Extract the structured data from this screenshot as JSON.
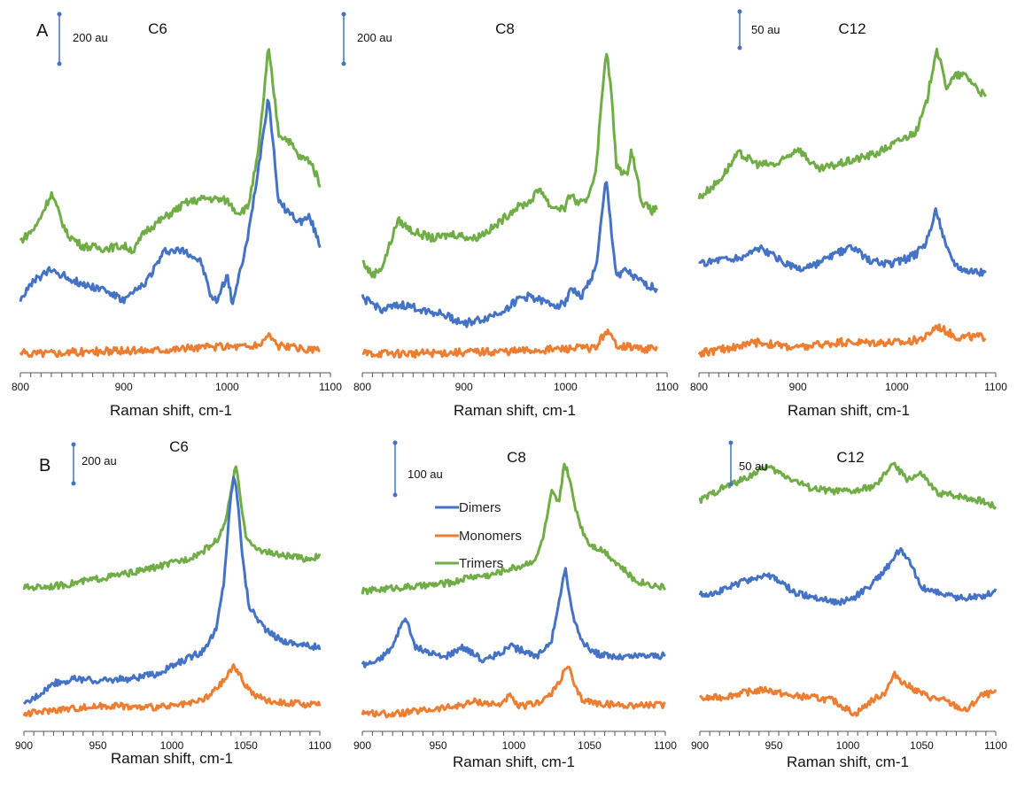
{
  "figure": {
    "row_labels": [
      "A",
      "B"
    ],
    "colors": {
      "Dimers": "#4472C4",
      "Monomers": "#ED7D31",
      "Trimers": "#70AD47",
      "scale_bar": "#4472C4",
      "axis": "#555555"
    },
    "legend": {
      "entries": [
        {
          "name": "Dimers",
          "color": "#4472C4"
        },
        {
          "name": "Monomers",
          "color": "#ED7D31"
        },
        {
          "name": "Trimers",
          "color": "#70AD47"
        }
      ]
    }
  },
  "chart_data": [
    {
      "type": "line",
      "panel": "A-C6",
      "title": "C6",
      "xlabel": "Raman shift, cm-1",
      "xlim": [
        800,
        1100
      ],
      "xticks": [
        800,
        900,
        1000,
        1100
      ],
      "yaxis_visible": false,
      "scale_bar": {
        "label": "200 au",
        "value": 200
      },
      "series": [
        {
          "name": "Trimers",
          "x": [
            800,
            815,
            830,
            845,
            860,
            880,
            900,
            910,
            920,
            940,
            960,
            980,
            1000,
            1010,
            1020,
            1030,
            1040,
            1050,
            1060,
            1070,
            1080,
            1090
          ],
          "y": [
            560,
            620,
            760,
            590,
            540,
            530,
            540,
            520,
            600,
            660,
            720,
            740,
            730,
            680,
            700,
            920,
            1370,
            1010,
            980,
            910,
            900,
            800
          ]
        },
        {
          "name": "Dimers",
          "x": [
            800,
            815,
            830,
            845,
            860,
            880,
            900,
            920,
            940,
            960,
            975,
            985,
            990,
            1000,
            1005,
            1010,
            1020,
            1030,
            1040,
            1050,
            1060,
            1070,
            1080,
            1090
          ],
          "y": [
            320,
            400,
            440,
            410,
            380,
            360,
            310,
            380,
            520,
            520,
            470,
            320,
            310,
            420,
            300,
            380,
            570,
            860,
            1170,
            720,
            680,
            640,
            660,
            540
          ]
        },
        {
          "name": "Monomers",
          "x": [
            800,
            850,
            900,
            950,
            1000,
            1030,
            1040,
            1050,
            1070,
            1090
          ],
          "y": [
            90,
            95,
            100,
            110,
            120,
            120,
            170,
            120,
            110,
            100
          ]
        }
      ]
    },
    {
      "type": "line",
      "panel": "A-C8",
      "title": "C8",
      "xlabel": "Raman shift, cm-1",
      "xlim": [
        800,
        1100
      ],
      "xticks": [
        800,
        900,
        1000,
        1100
      ],
      "yaxis_visible": false,
      "scale_bar": {
        "label": "200 au",
        "value": 200
      },
      "series": [
        {
          "name": "Trimers",
          "x": [
            800,
            810,
            820,
            835,
            850,
            870,
            890,
            910,
            930,
            950,
            965,
            975,
            985,
            1000,
            1005,
            1010,
            1020,
            1030,
            1040,
            1045,
            1050,
            1060,
            1065,
            1075,
            1085,
            1090
          ],
          "y": [
            460,
            400,
            440,
            640,
            590,
            560,
            580,
            560,
            610,
            690,
            720,
            780,
            700,
            690,
            760,
            720,
            710,
            860,
            1390,
            1200,
            880,
            830,
            950,
            720,
            680,
            690
          ]
        },
        {
          "name": "Dimers",
          "x": [
            800,
            820,
            840,
            860,
            880,
            900,
            920,
            940,
            955,
            965,
            980,
            995,
            1000,
            1005,
            1015,
            1030,
            1040,
            1045,
            1050,
            1060,
            1070,
            1080,
            1090
          ],
          "y": [
            300,
            250,
            270,
            250,
            230,
            190,
            210,
            250,
            300,
            310,
            280,
            270,
            280,
            350,
            300,
            430,
            820,
            600,
            400,
            420,
            380,
            360,
            340
          ]
        },
        {
          "name": "Monomers",
          "x": [
            800,
            850,
            900,
            950,
            1000,
            1030,
            1040,
            1050,
            1060,
            1080,
            1090
          ],
          "y": [
            60,
            60,
            65,
            70,
            80,
            85,
            160,
            100,
            90,
            80,
            80
          ]
        }
      ]
    },
    {
      "type": "line",
      "panel": "A-C12",
      "title": "C12",
      "xlabel": "Raman shift, cm-1",
      "xlim": [
        800,
        1100
      ],
      "xticks": [
        800,
        900,
        1000,
        1100
      ],
      "yaxis_visible": false,
      "scale_bar": {
        "label": "50 au",
        "value": 50
      },
      "series": [
        {
          "name": "Trimers",
          "x": [
            800,
            820,
            840,
            860,
            880,
            900,
            920,
            940,
            960,
            980,
            1000,
            1020,
            1030,
            1040,
            1050,
            1060,
            1070,
            1080,
            1090
          ],
          "y": [
            355,
            370,
            395,
            385,
            385,
            400,
            380,
            385,
            390,
            395,
            405,
            415,
            440,
            490,
            455,
            465,
            465,
            455,
            445
          ]
        },
        {
          "name": "Dimers",
          "x": [
            800,
            820,
            840,
            860,
            880,
            900,
            920,
            940,
            955,
            970,
            990,
            1010,
            1020,
            1030,
            1040,
            1050,
            1060,
            1070,
            1080,
            1090
          ],
          "y": [
            295,
            300,
            300,
            310,
            300,
            290,
            295,
            305,
            310,
            300,
            295,
            300,
            305,
            315,
            345,
            310,
            295,
            290,
            290,
            285
          ]
        },
        {
          "name": "Monomers",
          "x": [
            800,
            830,
            860,
            900,
            940,
            980,
            1010,
            1030,
            1040,
            1060,
            1080,
            1090
          ],
          "y": [
            215,
            220,
            225,
            220,
            225,
            225,
            225,
            230,
            240,
            230,
            230,
            230
          ]
        }
      ]
    },
    {
      "type": "line",
      "panel": "B-C6",
      "title": "C6",
      "xlabel": "Raman shift, cm-1",
      "xlim": [
        900,
        1100
      ],
      "xticks": [
        900,
        950,
        1000,
        1050,
        1100
      ],
      "yaxis_visible": false,
      "scale_bar": {
        "label": "200 au",
        "value": 200
      },
      "series": [
        {
          "name": "Trimers",
          "x": [
            900,
            925,
            950,
            975,
            1000,
            1010,
            1020,
            1030,
            1035,
            1040,
            1043,
            1046,
            1050,
            1055,
            1060,
            1070,
            1080,
            1090,
            1100
          ],
          "y": [
            580,
            590,
            620,
            650,
            690,
            710,
            740,
            790,
            850,
            1000,
            1140,
            1000,
            820,
            760,
            750,
            730,
            720,
            710,
            720
          ]
        },
        {
          "name": "Dimers",
          "x": [
            900,
            910,
            920,
            935,
            950,
            970,
            990,
            1010,
            1020,
            1030,
            1035,
            1040,
            1042,
            1045,
            1048,
            1052,
            1058,
            1065,
            1075,
            1090,
            1100
          ],
          "y": [
            50,
            100,
            150,
            170,
            160,
            170,
            190,
            260,
            290,
            390,
            600,
            1000,
            1090,
            950,
            700,
            500,
            440,
            380,
            340,
            320,
            310
          ]
        },
        {
          "name": "Monomers",
          "x": [
            900,
            920,
            940,
            960,
            980,
            1000,
            1015,
            1025,
            1035,
            1042,
            1048,
            1055,
            1065,
            1080,
            1100
          ],
          "y": [
            10,
            30,
            40,
            50,
            40,
            45,
            60,
            90,
            160,
            230,
            160,
            100,
            70,
            60,
            50
          ]
        }
      ]
    },
    {
      "type": "line",
      "panel": "B-C8",
      "title": "C8",
      "xlabel": "Raman shift, cm-1",
      "xlim": [
        900,
        1100
      ],
      "xticks": [
        900,
        950,
        1000,
        1050,
        1100
      ],
      "yaxis_visible": false,
      "scale_bar": {
        "label": "100 au",
        "value": 100
      },
      "series": [
        {
          "name": "Trimers",
          "x": [
            900,
            920,
            940,
            960,
            970,
            985,
            995,
            1005,
            1015,
            1020,
            1025,
            1030,
            1033,
            1036,
            1040,
            1045,
            1050,
            1060,
            1070,
            1080,
            1090,
            1100
          ],
          "y": [
            530,
            540,
            545,
            555,
            570,
            575,
            590,
            600,
            620,
            690,
            800,
            770,
            880,
            850,
            770,
            700,
            660,
            640,
            600,
            560,
            550,
            540
          ]
        },
        {
          "name": "Dimers",
          "x": [
            900,
            910,
            920,
            928,
            935,
            945,
            955,
            965,
            970,
            980,
            990,
            998,
            1005,
            1015,
            1025,
            1030,
            1034,
            1038,
            1045,
            1055,
            1070,
            1085,
            1100
          ],
          "y": [
            330,
            340,
            380,
            460,
            380,
            360,
            350,
            380,
            370,
            340,
            360,
            380,
            370,
            350,
            400,
            500,
            600,
            480,
            390,
            360,
            350,
            355,
            355
          ]
        },
        {
          "name": "Monomers",
          "x": [
            900,
            920,
            940,
            960,
            975,
            990,
            997,
            1003,
            1015,
            1025,
            1032,
            1036,
            1040,
            1045,
            1055,
            1070,
            1085,
            1100
          ],
          "y": [
            200,
            195,
            205,
            215,
            230,
            220,
            245,
            215,
            225,
            250,
            300,
            330,
            270,
            235,
            225,
            220,
            220,
            220
          ]
        }
      ]
    },
    {
      "type": "line",
      "panel": "B-C12",
      "title": "C12",
      "xlabel": "Raman shift, cm-1",
      "xlim": [
        900,
        1100
      ],
      "xticks": [
        900,
        950,
        1000,
        1050,
        1100
      ],
      "yaxis_visible": false,
      "scale_bar": {
        "label": "50 au",
        "value": 50
      },
      "series": [
        {
          "name": "Trimers",
          "x": [
            900,
            915,
            930,
            945,
            960,
            975,
            990,
            1005,
            1020,
            1030,
            1040,
            1050,
            1060,
            1075,
            1090,
            1100
          ],
          "y": [
            370,
            378,
            384,
            392,
            385,
            378,
            376,
            376,
            380,
            394,
            384,
            387,
            375,
            373,
            370,
            366
          ]
        },
        {
          "name": "Dimers",
          "x": [
            900,
            915,
            930,
            945,
            955,
            965,
            980,
            995,
            1005,
            1015,
            1025,
            1035,
            1042,
            1050,
            1060,
            1075,
            1090,
            1100
          ],
          "y": [
            309,
            312,
            318,
            322,
            317,
            310,
            307,
            304,
            308,
            315,
            325,
            338,
            330,
            314,
            311,
            307,
            308,
            312
          ]
        },
        {
          "name": "Monomers",
          "x": [
            900,
            915,
            930,
            945,
            960,
            975,
            990,
            1005,
            1015,
            1025,
            1032,
            1038,
            1045,
            1055,
            1065,
            1080,
            1090,
            1100
          ],
          "y": [
            242,
            243,
            246,
            248,
            244,
            243,
            241,
            232,
            240,
            246,
            258,
            252,
            248,
            243,
            241,
            234,
            244,
            246
          ]
        }
      ]
    }
  ]
}
